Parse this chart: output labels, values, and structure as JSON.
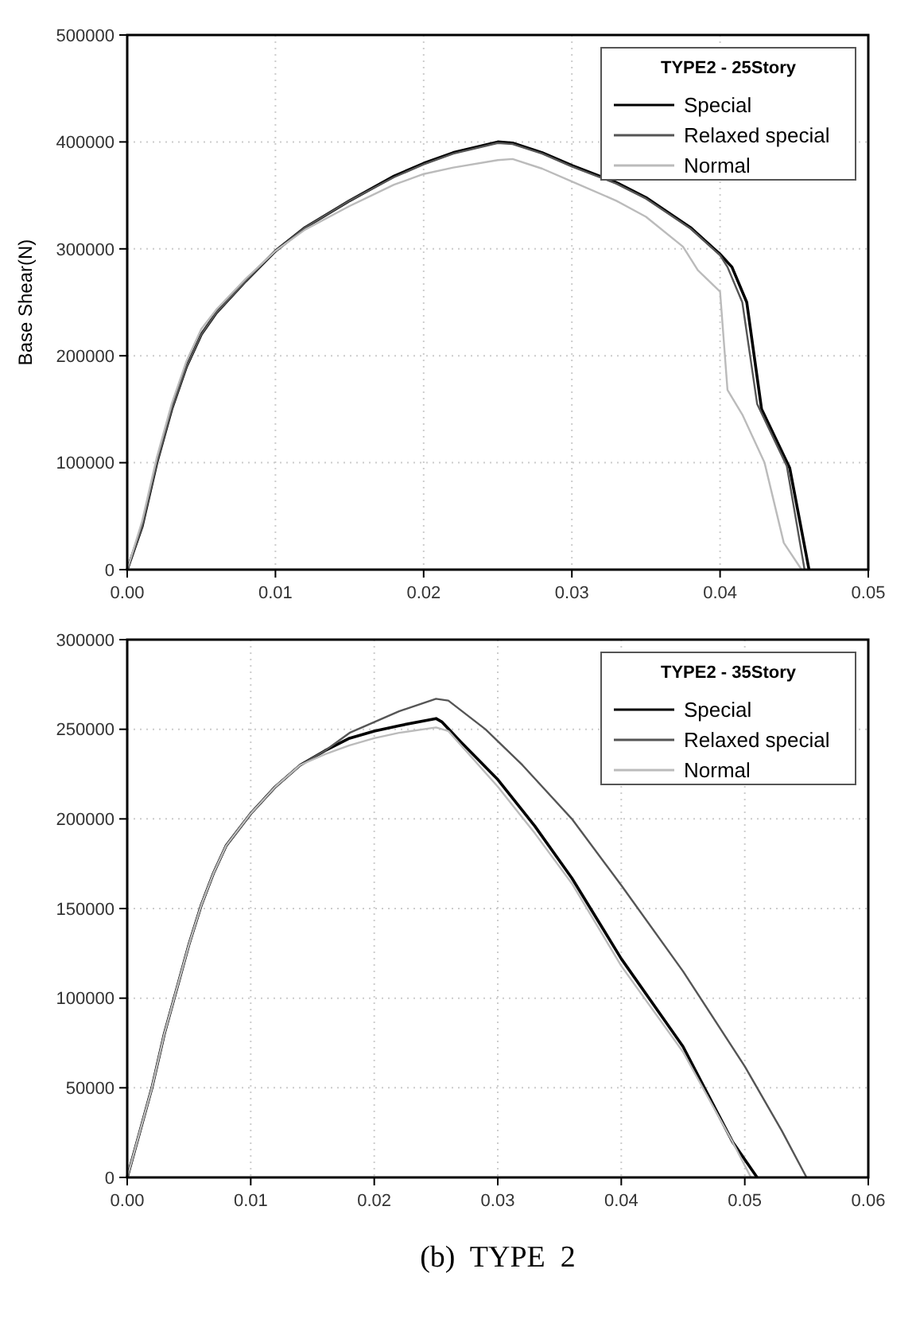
{
  "chart_data": [
    {
      "type": "line",
      "ylabel": "Base Shear(N)",
      "legend_title": "TYPE2 - 25Story",
      "legend": "top right",
      "grid": true,
      "xlim": [
        0,
        0.05
      ],
      "ylim": [
        0,
        500000
      ],
      "xticks": [
        {
          "value": 0,
          "label": "0.00"
        },
        0.01,
        0.02,
        0.03,
        0.04,
        0.05
      ],
      "yticks": [
        0,
        100000,
        200000,
        300000,
        400000,
        500000
      ],
      "series": [
        {
          "name": "Special",
          "color": "#000000",
          "x": [
            0,
            0.001,
            0.002,
            0.003,
            0.004,
            0.005,
            0.006,
            0.008,
            0.01,
            0.012,
            0.015,
            0.018,
            0.02,
            0.022,
            0.025,
            0.026,
            0.028,
            0.03,
            0.033,
            0.035,
            0.038,
            0.04,
            0.0408,
            0.0418,
            0.0428,
            0.0447,
            0.046
          ],
          "values": [
            0,
            40000,
            100000,
            150000,
            190000,
            220000,
            240000,
            270000,
            298000,
            320000,
            345000,
            368000,
            380000,
            390000,
            400000,
            399000,
            390000,
            378000,
            362000,
            348000,
            320000,
            295000,
            283000,
            250000,
            150000,
            95000,
            0
          ]
        },
        {
          "name": "Relaxed special",
          "color": "#555555",
          "x": [
            0,
            0.001,
            0.002,
            0.003,
            0.004,
            0.005,
            0.006,
            0.008,
            0.01,
            0.012,
            0.015,
            0.018,
            0.02,
            0.022,
            0.025,
            0.026,
            0.028,
            0.03,
            0.033,
            0.035,
            0.038,
            0.04,
            0.0405,
            0.0415,
            0.0425,
            0.0445,
            0.0457
          ],
          "values": [
            0,
            40000,
            100000,
            150000,
            190000,
            220000,
            240000,
            270000,
            298000,
            320000,
            345000,
            367000,
            379000,
            389000,
            399000,
            398000,
            389000,
            377000,
            361000,
            347000,
            319000,
            294000,
            283000,
            250000,
            155000,
            97000,
            0
          ]
        },
        {
          "name": "Normal",
          "color": "#bbbbbb",
          "x": [
            0,
            0.001,
            0.002,
            0.003,
            0.004,
            0.005,
            0.006,
            0.008,
            0.01,
            0.012,
            0.015,
            0.018,
            0.02,
            0.022,
            0.025,
            0.026,
            0.028,
            0.03,
            0.033,
            0.035,
            0.0375,
            0.0385,
            0.04,
            0.0405,
            0.0415,
            0.043,
            0.0443,
            0.0455
          ],
          "values": [
            0,
            45000,
            105000,
            155000,
            195000,
            225000,
            243000,
            272000,
            298000,
            318000,
            340000,
            360000,
            370000,
            376000,
            383000,
            384000,
            375000,
            363000,
            345000,
            330000,
            302000,
            280000,
            260000,
            168000,
            145000,
            100000,
            25000,
            0
          ]
        }
      ]
    },
    {
      "type": "line",
      "legend_title": "TYPE2 - 35Story",
      "legend": "top right",
      "grid": true,
      "xlim": [
        0,
        0.06
      ],
      "ylim": [
        0,
        300000
      ],
      "xticks": [
        {
          "value": 0,
          "label": "0.00"
        },
        0.01,
        0.02,
        0.03,
        0.04,
        0.05,
        0.06
      ],
      "yticks": [
        0,
        50000,
        100000,
        150000,
        200000,
        250000,
        300000
      ],
      "annotations": [
        "(b)  TYPE  2"
      ],
      "series": [
        {
          "name": "Special",
          "color": "#000000",
          "x": [
            0,
            0.001,
            0.002,
            0.003,
            0.004,
            0.005,
            0.006,
            0.007,
            0.008,
            0.01,
            0.012,
            0.014,
            0.016,
            0.018,
            0.02,
            0.022,
            0.025,
            0.0255,
            0.027,
            0.03,
            0.033,
            0.036,
            0.04,
            0.045,
            0.049,
            0.051
          ],
          "values": [
            0,
            25000,
            50000,
            80000,
            105000,
            130000,
            152000,
            170000,
            185000,
            203000,
            218000,
            230000,
            238000,
            245000,
            249000,
            252000,
            256000,
            254000,
            243000,
            222000,
            196000,
            167000,
            122000,
            73000,
            20000,
            0
          ]
        },
        {
          "name": "Relaxed special",
          "color": "#555555",
          "x": [
            0,
            0.001,
            0.002,
            0.003,
            0.004,
            0.005,
            0.006,
            0.007,
            0.008,
            0.01,
            0.012,
            0.014,
            0.016,
            0.018,
            0.02,
            0.022,
            0.025,
            0.026,
            0.029,
            0.032,
            0.036,
            0.04,
            0.045,
            0.05,
            0.053,
            0.055
          ],
          "values": [
            0,
            25000,
            50000,
            80000,
            105000,
            130000,
            152000,
            170000,
            185000,
            203000,
            218000,
            230000,
            238000,
            248000,
            254000,
            260000,
            267000,
            266000,
            250000,
            230000,
            200000,
            163000,
            115000,
            62000,
            26000,
            0
          ]
        },
        {
          "name": "Normal",
          "color": "#bbbbbb",
          "x": [
            0,
            0.001,
            0.002,
            0.003,
            0.004,
            0.005,
            0.006,
            0.007,
            0.008,
            0.01,
            0.012,
            0.014,
            0.016,
            0.018,
            0.02,
            0.022,
            0.025,
            0.026,
            0.03,
            0.033,
            0.036,
            0.04,
            0.045,
            0.049,
            0.0505
          ],
          "values": [
            0,
            25000,
            50000,
            80000,
            105000,
            130000,
            152000,
            170000,
            185000,
            203000,
            218000,
            230000,
            236000,
            241000,
            245000,
            248000,
            251000,
            249000,
            218000,
            192000,
            164000,
            118000,
            70000,
            20000,
            0
          ]
        }
      ]
    }
  ]
}
